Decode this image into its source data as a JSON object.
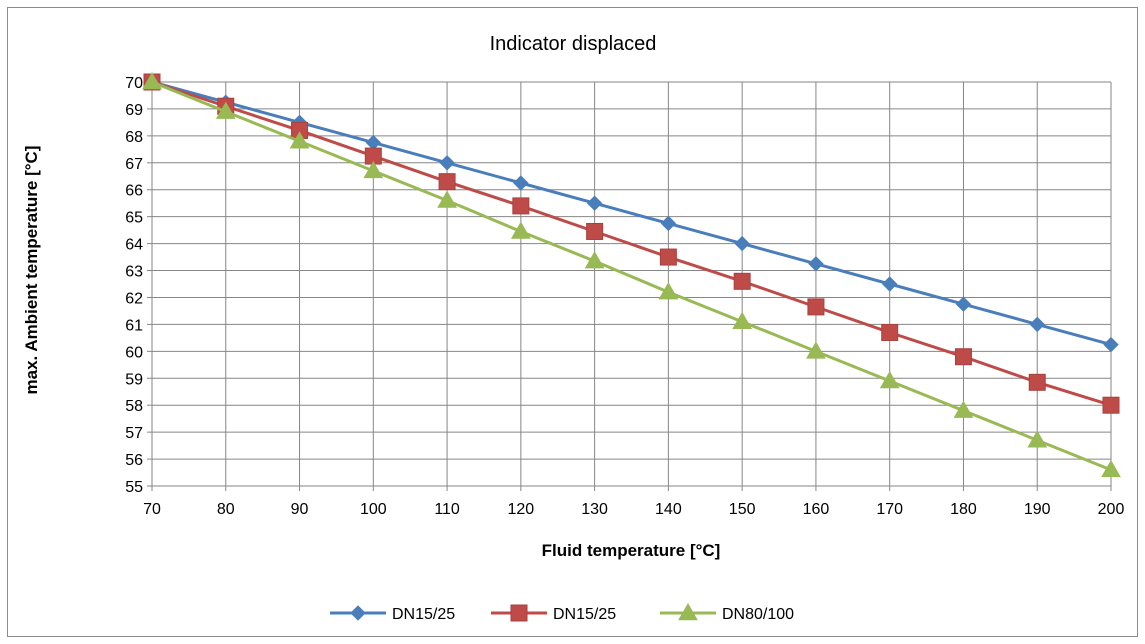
{
  "chart_data": {
    "type": "line",
    "title": "Indicator displaced",
    "xlabel": "Fluid temperature [°C]",
    "ylabel": "max. Ambient temperature [°C]",
    "x": [
      70,
      80,
      90,
      100,
      110,
      120,
      130,
      140,
      150,
      160,
      170,
      180,
      190,
      200
    ],
    "xlim": [
      70,
      200
    ],
    "ylim": [
      55,
      70
    ],
    "x_ticks": [
      70,
      80,
      90,
      100,
      110,
      120,
      130,
      140,
      150,
      160,
      170,
      180,
      190,
      200
    ],
    "y_ticks": [
      55,
      56,
      57,
      58,
      59,
      60,
      61,
      62,
      63,
      64,
      65,
      66,
      67,
      68,
      69,
      70
    ],
    "grid": true,
    "legend_position": "bottom",
    "series": [
      {
        "name": "DN15/25",
        "color": "#4a7ebb",
        "marker": "diamond",
        "values": [
          70,
          69.25,
          68.5,
          67.75,
          67.0,
          66.25,
          65.5,
          64.75,
          64.0,
          63.25,
          62.5,
          61.75,
          61.0,
          60.25
        ]
      },
      {
        "name": "DN15/25",
        "color": "#be4b48",
        "marker": "square",
        "values": [
          70,
          69.1,
          68.2,
          67.25,
          66.3,
          65.4,
          64.45,
          63.5,
          62.6,
          61.65,
          60.7,
          59.8,
          58.85,
          58.0
        ]
      },
      {
        "name": "DN80/100",
        "color": "#98b954",
        "marker": "triangle",
        "values": [
          70,
          68.9,
          67.8,
          66.7,
          65.6,
          64.45,
          63.35,
          62.2,
          61.1,
          60.0,
          58.9,
          57.8,
          56.7,
          55.6
        ]
      }
    ]
  }
}
